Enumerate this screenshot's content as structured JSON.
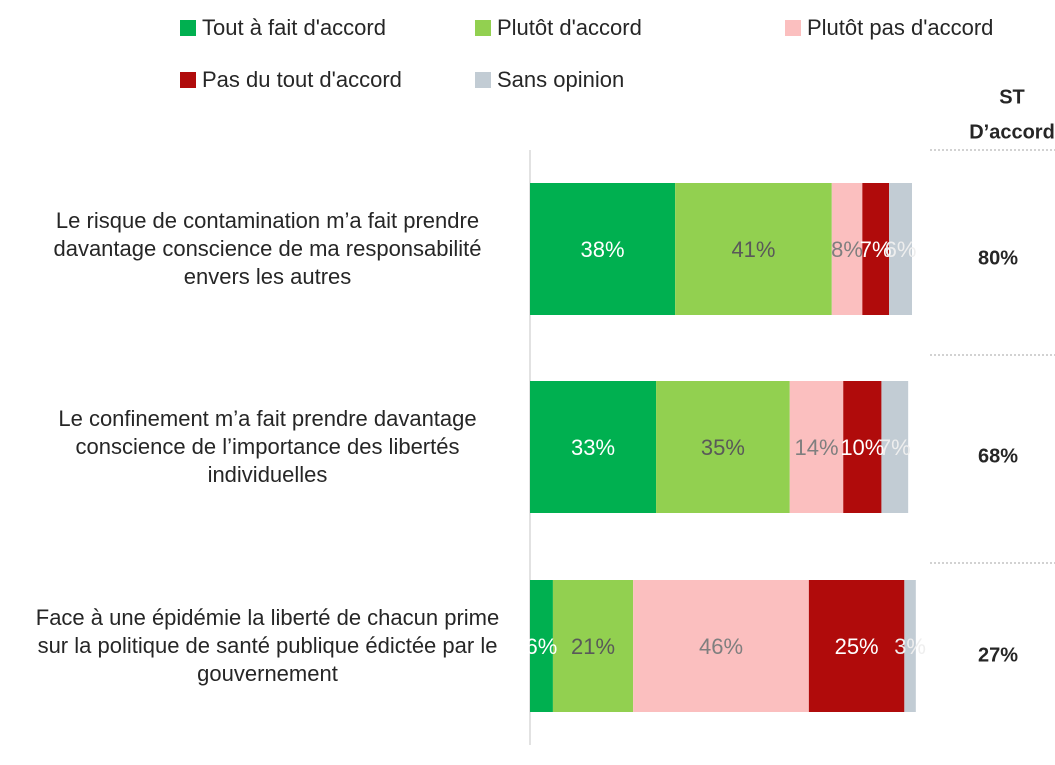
{
  "chart_data": {
    "type": "stacked-bar-horizontal",
    "categories": [
      "Le risque de contamination m’a fait prendre davantage conscience de ma responsabilité envers les autres",
      "Le confinement m’a fait prendre davantage conscience de l’importance des libertés individuelles",
      "Face à une épidémie la liberté de chacun prime sur la politique de santé publique édictée par le gouvernement"
    ],
    "xlim": [
      0,
      100
    ],
    "series": [
      {
        "name": "Tout à fait d'accord",
        "color": "#00b050",
        "label_color": "#ffffff",
        "values": [
          38,
          33,
          6
        ],
        "value_labels": [
          "38%",
          "33%",
          "6%"
        ]
      },
      {
        "name": "Plutôt d'accord",
        "color": "#92d050",
        "label_color": "#595959",
        "values": [
          41,
          35,
          21
        ],
        "value_labels": [
          "41%",
          "35%",
          "21%"
        ]
      },
      {
        "name": "Plutôt pas d'accord",
        "color": "#fbbfbf",
        "label_color": "#7f7f7f",
        "values": [
          8,
          14,
          46
        ],
        "value_labels": [
          "8%",
          "14%",
          "46%"
        ]
      },
      {
        "name": "Pas du tout d'accord",
        "color": "#b00b0b",
        "label_color": "#ffffff",
        "values": [
          7,
          10,
          25
        ],
        "value_labels": [
          "7%",
          "10%",
          "25%"
        ]
      },
      {
        "name": "Sans opinion",
        "color": "#c2ccd4",
        "label_color": "#eeeeee",
        "values": [
          6,
          7,
          3
        ],
        "value_labels": [
          "6%",
          "7%",
          "3%"
        ]
      }
    ],
    "totals": {
      "title": [
        "ST",
        "D’accord"
      ],
      "values": [
        80,
        68,
        27
      ],
      "value_labels": [
        "80%",
        "68%",
        "27%"
      ]
    }
  }
}
